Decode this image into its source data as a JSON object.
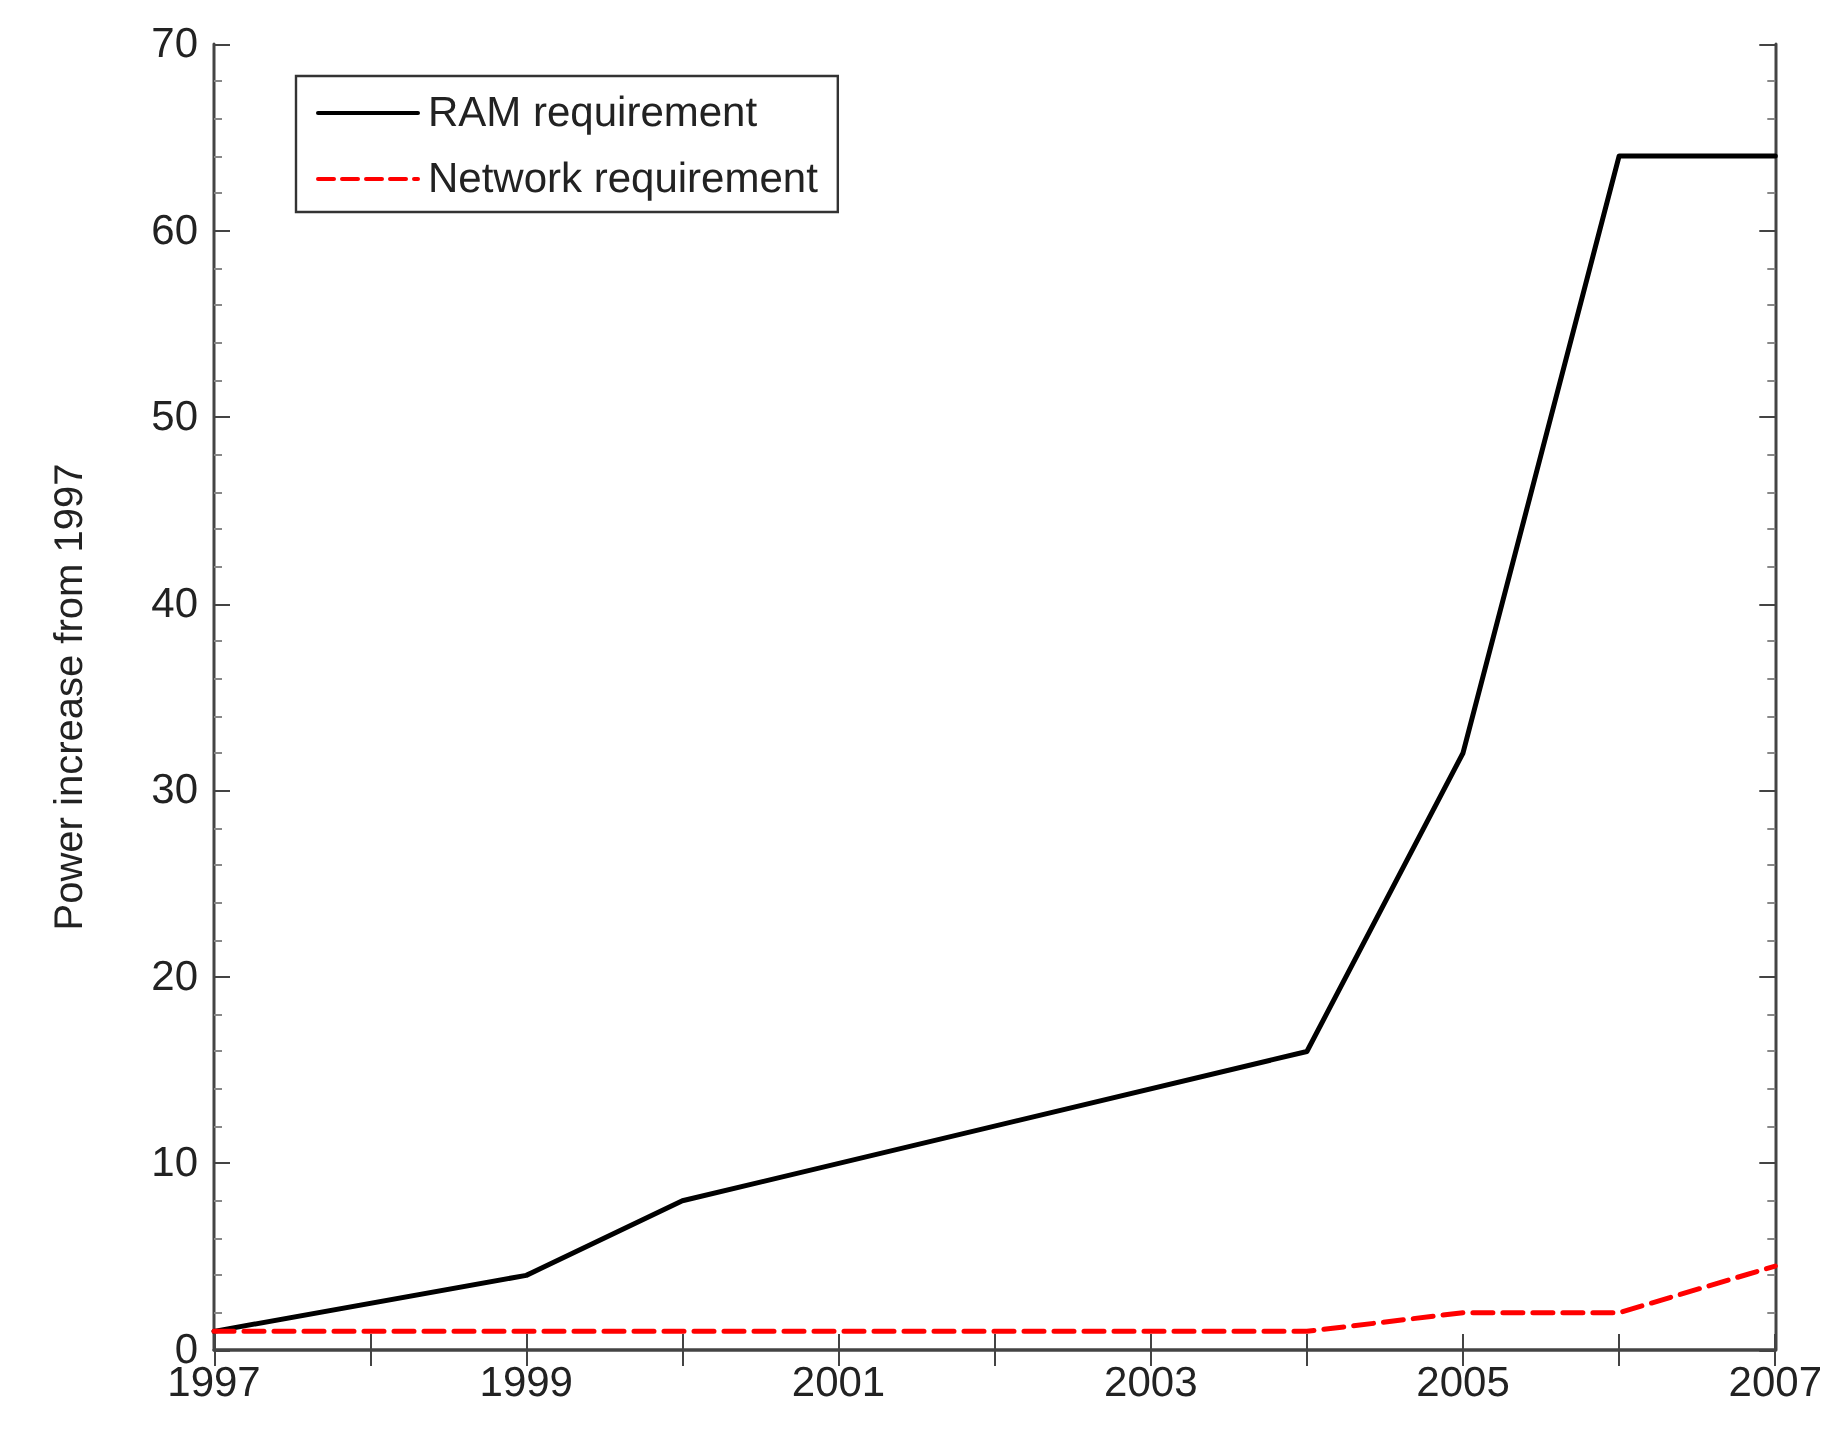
{
  "chart_data": {
    "type": "line",
    "ylabel": "Power increase from 1997",
    "x": [
      1997,
      1999,
      2000,
      2004,
      2005,
      2006,
      2007
    ],
    "series": [
      {
        "name": "RAM requirement",
        "color": "#000000",
        "values": [
          1,
          4,
          8,
          16,
          32,
          64,
          64
        ],
        "line_style": "solid"
      },
      {
        "name": "Network requirement",
        "color": "#ff0000",
        "x": [
          1997,
          2004,
          2005,
          2006,
          2007
        ],
        "values": [
          1,
          1,
          2,
          2,
          4.5
        ],
        "line_style": "dashed"
      }
    ],
    "xlim": [
      1997,
      2007
    ],
    "xticks": [
      1997,
      {
        "value": 1998,
        "label": null
      },
      1999,
      {
        "value": 2000,
        "label": null
      },
      2001,
      {
        "value": 2002,
        "label": null
      },
      2003,
      {
        "value": 2004,
        "label": null
      },
      2005,
      {
        "value": 2006,
        "label": null
      },
      2007
    ],
    "ylim": [
      0,
      70
    ],
    "yticks": [
      0,
      10,
      20,
      30,
      40,
      50,
      60,
      70
    ],
    "grid": false,
    "legend": "top left",
    "marker": "none"
  }
}
